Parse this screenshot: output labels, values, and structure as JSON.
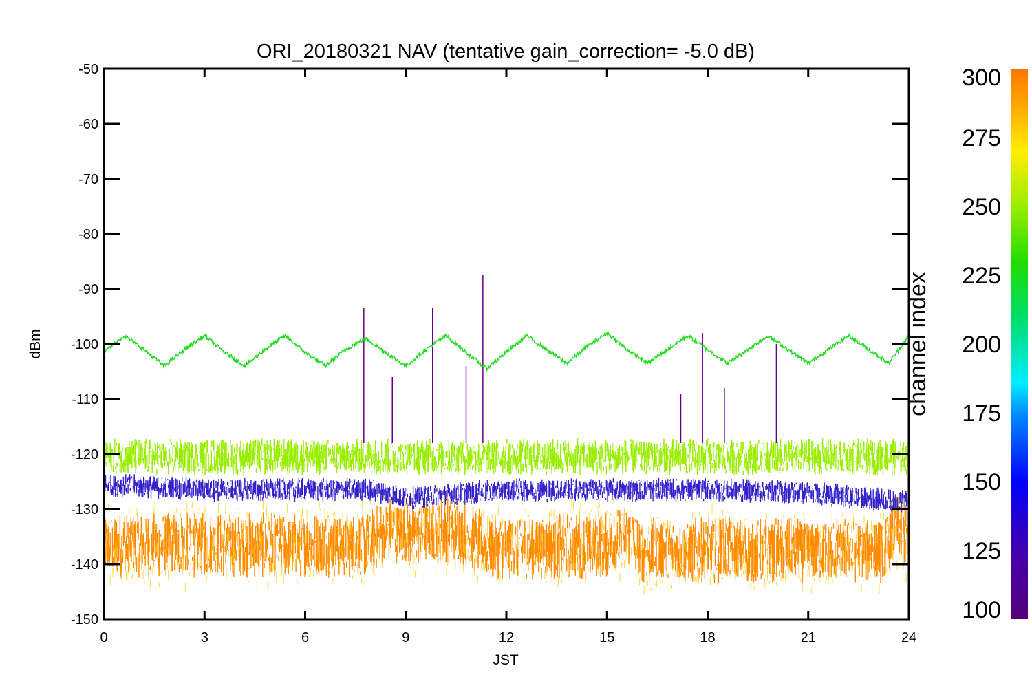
{
  "chart_data": {
    "type": "line",
    "title": "ORI_20180321 NAV (tentative gain_correction= -5.0 dB)",
    "xlabel": "JST",
    "ylabel": "dBm",
    "xlim": [
      0,
      24
    ],
    "ylim": [
      -150,
      -50
    ],
    "xticks": [
      0,
      3,
      6,
      9,
      12,
      15,
      18,
      21,
      24
    ],
    "yticks": [
      -50,
      -60,
      -70,
      -80,
      -90,
      -100,
      -110,
      -120,
      -130,
      -140,
      -150
    ],
    "grid": false,
    "colorbar": {
      "label": "channel index",
      "range": [
        100,
        300
      ],
      "ticks": [
        100,
        125,
        150,
        175,
        200,
        225,
        250,
        275,
        300
      ],
      "colormap": "rainbow (purple-blue-cyan-green-yellow-orange)"
    },
    "series": [
      {
        "name": "",
        "channel": 230,
        "color": "#22dd22",
        "description_values": "sinusoid centered near -101 dBm, amplitude about 3 dB, period about 2.4 h",
        "x": [
          0,
          0.6,
          1.2,
          1.8,
          2.4,
          3.0,
          3.6,
          4.2,
          4.8,
          5.4,
          6.0,
          6.6,
          7.2,
          7.8,
          8.4,
          9.0,
          9.6,
          10.2,
          10.8,
          11.4,
          12.0,
          12.6,
          13.2,
          13.8,
          14.4,
          15.0,
          15.6,
          16.2,
          16.8,
          17.4,
          18.0,
          18.6,
          19.2,
          19.8,
          20.4,
          21.0,
          21.6,
          22.2,
          22.8,
          23.4,
          24.0
        ],
        "y": [
          -101.5,
          -98.5,
          -101.0,
          -104.0,
          -101.0,
          -98.5,
          -101.5,
          -104.0,
          -101.0,
          -98.5,
          -101.5,
          -104.0,
          -101.0,
          -99.0,
          -101.5,
          -104.0,
          -101.0,
          -98.5,
          -101.5,
          -104.5,
          -101.5,
          -98.5,
          -101.0,
          -103.5,
          -100.5,
          -98.0,
          -101.0,
          -103.5,
          -101.0,
          -98.5,
          -101.0,
          -103.5,
          -101.0,
          -98.5,
          -101.0,
          -103.5,
          -101.0,
          -98.5,
          -101.0,
          -103.5,
          -98.5
        ]
      },
      {
        "name": "",
        "channel": 260,
        "color": "#99ee00",
        "band_center": [
          -120.5,
          -120.5,
          -120.5,
          -120.5,
          -120.5,
          -120.5,
          -120.5,
          -120.5,
          -120.5
        ],
        "band_x": [
          0,
          3,
          6,
          9,
          12,
          15,
          18,
          21,
          24
        ],
        "band_halfwidth": 2.8
      },
      {
        "name": "",
        "channel": 140,
        "color": "#3322cc",
        "band_x": [
          0,
          3,
          6,
          8,
          9,
          12,
          15,
          18,
          21,
          23.5,
          24
        ],
        "band_center": [
          -125.5,
          -126.5,
          -126.5,
          -126.5,
          -128.0,
          -126.5,
          -126.5,
          -126.5,
          -127.0,
          -128.5,
          -128.5
        ],
        "band_halfwidth": 1.8
      },
      {
        "name": "",
        "channel": 290,
        "color": "#ff8c00",
        "band_x": [
          0,
          3,
          6,
          7.8,
          8.5,
          9.0,
          10.5,
          11.5,
          12,
          15,
          15.7,
          16,
          18,
          21,
          23.3,
          23.6,
          24
        ],
        "band_center": [
          -136.5,
          -136.5,
          -136.5,
          -136.5,
          -133.5,
          -134.5,
          -133.5,
          -137.0,
          -137.0,
          -136.5,
          -134.5,
          -137.5,
          -137.5,
          -137.5,
          -137.5,
          -133.0,
          -135.5
        ],
        "band_halfwidth": 5.0
      },
      {
        "name": "",
        "channel": 110,
        "color": "#660088",
        "spikes_x": [
          7.75,
          9.8,
          11.3,
          17.85,
          20.05,
          10.8,
          8.6,
          17.2,
          18.5
        ],
        "spikes_y": [
          -93.5,
          -93.5,
          -87.5,
          -98.0,
          -100.0,
          -104.0,
          -106.0,
          -109.0,
          -108.0
        ]
      }
    ]
  }
}
